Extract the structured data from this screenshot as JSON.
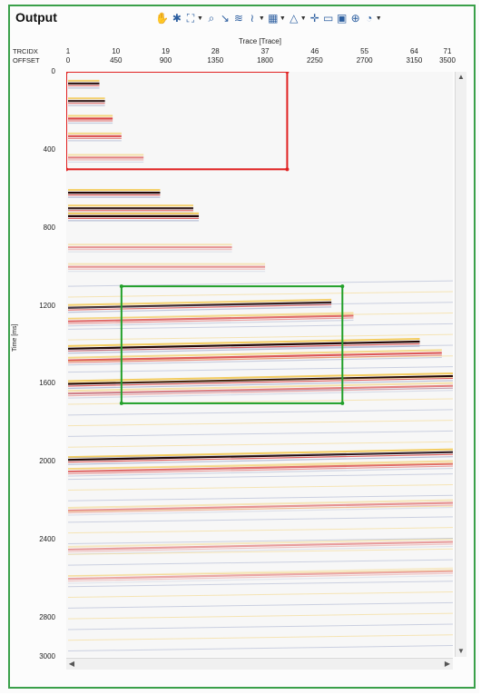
{
  "window": {
    "title": "Output"
  },
  "toolbar": [
    {
      "name": "pan-tool-button",
      "icon": "hand-icon",
      "glyph": "✋",
      "dropdown": false
    },
    {
      "name": "settings-button",
      "icon": "gear-icon",
      "glyph": "✱",
      "dropdown": false
    },
    {
      "name": "zoom-extent-button",
      "icon": "zoom-box-icon",
      "glyph": "⛶",
      "dropdown": true
    },
    {
      "name": "zoom-button",
      "icon": "magnifier-icon",
      "glyph": "⌕",
      "dropdown": false
    },
    {
      "name": "pick-button",
      "icon": "picker-icon",
      "glyph": "↘",
      "dropdown": false
    },
    {
      "name": "layers-button",
      "icon": "layers-icon",
      "glyph": "≋",
      "dropdown": false
    },
    {
      "name": "wiggle-button",
      "icon": "wiggle-icon",
      "glyph": "≀",
      "dropdown": true
    },
    {
      "name": "table-button",
      "icon": "grid-icon",
      "glyph": "▦",
      "dropdown": true
    },
    {
      "name": "polygon-button",
      "icon": "polygon-icon",
      "glyph": "△",
      "dropdown": true
    },
    {
      "name": "crosshair-button",
      "icon": "crosshair-icon",
      "glyph": "✛",
      "dropdown": false
    },
    {
      "name": "comment-button",
      "icon": "comment-icon",
      "glyph": "▭",
      "dropdown": false
    },
    {
      "name": "export-image-button",
      "icon": "image-icon",
      "glyph": "▣",
      "dropdown": false
    },
    {
      "name": "zoom-fit-button",
      "icon": "magnifier-plus-icon",
      "glyph": "⊕",
      "dropdown": false
    },
    {
      "name": "options-button",
      "icon": "gauge-icon",
      "glyph": "◔",
      "dropdown": true
    }
  ],
  "axes": {
    "x_title": "Trace [Trace]",
    "header_labels": [
      "TRCIDX",
      "OFFSET"
    ],
    "trcidx_ticks": [
      "1",
      "10",
      "19",
      "28",
      "37",
      "46",
      "55",
      "64",
      "71"
    ],
    "offset_ticks": [
      "0",
      "450",
      "900",
      "1350",
      "1800",
      "2250",
      "2700",
      "3150",
      "3500"
    ],
    "y_title": "Time [ms]",
    "y_ticks": [
      "0",
      "400",
      "800",
      "1200",
      "1600",
      "2000",
      "2400",
      "2800",
      "3000"
    ],
    "x_range": [
      0,
      3500
    ],
    "y_range": [
      0,
      3000
    ]
  },
  "overlays": [
    {
      "name": "red-selection-box",
      "color": "#e02020",
      "x_offset": [
        0,
        2000
      ],
      "y_time": [
        0,
        500
      ]
    },
    {
      "name": "green-selection-box",
      "color": "#22a02a",
      "x_offset": [
        500,
        2500
      ],
      "y_time": [
        1100,
        1700
      ]
    }
  ],
  "seismic": {
    "colors": {
      "positive": "#d42020",
      "strong": "#220808",
      "yellow": "#f3c23a",
      "negative": "#7888b8"
    },
    "reflectors": [
      {
        "time": 60,
        "end_offset": 300,
        "strength": 0.9
      },
      {
        "time": 150,
        "end_offset": 350,
        "strength": 0.9
      },
      {
        "time": 240,
        "end_offset": 420,
        "strength": 0.8
      },
      {
        "time": 330,
        "end_offset": 500,
        "strength": 0.7
      },
      {
        "time": 440,
        "end_offset": 700,
        "strength": 0.5
      },
      {
        "time": 620,
        "end_offset": 850,
        "strength": 1.0
      },
      {
        "time": 700,
        "end_offset": 1150,
        "strength": 0.9
      },
      {
        "time": 740,
        "end_offset": 1200,
        "strength": 1.0
      },
      {
        "time": 900,
        "end_offset": 1500,
        "strength": 0.4
      },
      {
        "time": 1000,
        "end_offset": 1800,
        "strength": 0.4
      },
      {
        "time": 1210,
        "end_offset": 2400,
        "strength": 0.9
      },
      {
        "time": 1280,
        "end_offset": 2600,
        "strength": 0.6
      },
      {
        "time": 1420,
        "end_offset": 3200,
        "strength": 1.0
      },
      {
        "time": 1480,
        "end_offset": 3400,
        "strength": 0.7
      },
      {
        "time": 1600,
        "end_offset": 3500,
        "strength": 1.0
      },
      {
        "time": 1650,
        "end_offset": 3500,
        "strength": 0.5
      },
      {
        "time": 1990,
        "end_offset": 3500,
        "strength": 1.0
      },
      {
        "time": 2050,
        "end_offset": 3500,
        "strength": 0.6
      },
      {
        "time": 2250,
        "end_offset": 3500,
        "strength": 0.4
      },
      {
        "time": 2450,
        "end_offset": 3500,
        "strength": 0.35
      },
      {
        "time": 2600,
        "end_offset": 3500,
        "strength": 0.3
      }
    ]
  }
}
